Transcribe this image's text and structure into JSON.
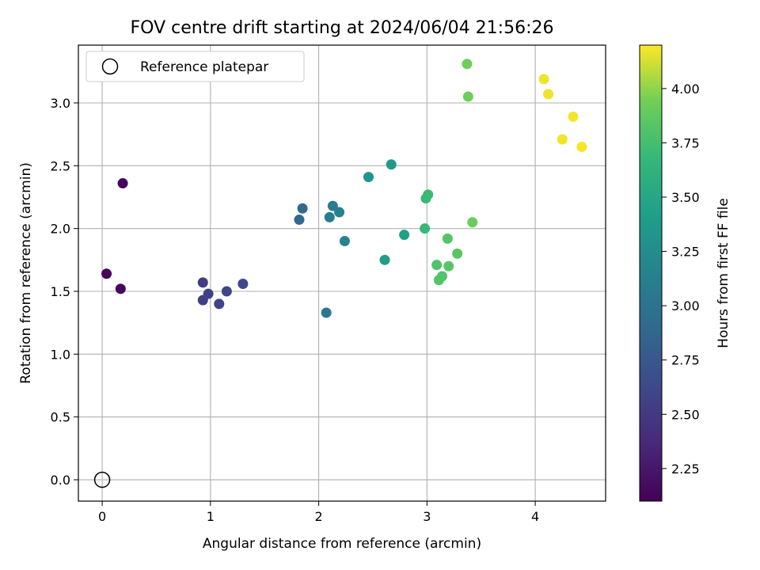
{
  "chart_data": {
    "type": "scatter",
    "title": "FOV centre drift starting at 2024/06/04 21:56:26",
    "xlabel": "Angular distance from reference (arcmin)",
    "ylabel": "Rotation from reference (arcmin)",
    "xlim": [
      -0.22,
      4.65
    ],
    "ylim": [
      -0.17,
      3.46
    ],
    "xticks": [
      0,
      1,
      2,
      3,
      4
    ],
    "yticks": [
      0.0,
      0.5,
      1.0,
      1.5,
      2.0,
      2.5,
      3.0
    ],
    "grid": true,
    "legend": {
      "placement": "top-left",
      "entries": [
        "Reference platepar"
      ]
    },
    "reference_point": {
      "x": 0,
      "y": 0,
      "label": "Reference platepar"
    },
    "colorbar": {
      "label": "Hours from first FF file",
      "range": [
        2.1,
        4.2
      ],
      "ticks": [
        2.25,
        2.5,
        2.75,
        3.0,
        3.25,
        3.5,
        3.75,
        4.0
      ],
      "tick_labels": [
        "2.25",
        "2.50",
        "2.75",
        "3.00",
        "3.25",
        "3.50",
        "3.75",
        "4.00"
      ],
      "colormap": "viridis"
    },
    "points": [
      {
        "x": 0.04,
        "y": 1.64,
        "c": 2.13
      },
      {
        "x": 0.17,
        "y": 1.52,
        "c": 2.14
      },
      {
        "x": 0.19,
        "y": 2.36,
        "c": 2.15
      },
      {
        "x": 0.93,
        "y": 1.57,
        "c": 2.52
      },
      {
        "x": 0.93,
        "y": 1.43,
        "c": 2.54
      },
      {
        "x": 0.98,
        "y": 1.48,
        "c": 2.56
      },
      {
        "x": 1.08,
        "y": 1.4,
        "c": 2.58
      },
      {
        "x": 1.15,
        "y": 1.5,
        "c": 2.6
      },
      {
        "x": 1.3,
        "y": 1.56,
        "c": 2.62
      },
      {
        "x": 1.82,
        "y": 2.07,
        "c": 2.9
      },
      {
        "x": 1.85,
        "y": 2.16,
        "c": 2.91
      },
      {
        "x": 2.07,
        "y": 1.33,
        "c": 3.05
      },
      {
        "x": 2.1,
        "y": 2.09,
        "c": 3.08
      },
      {
        "x": 2.13,
        "y": 2.18,
        "c": 3.1
      },
      {
        "x": 2.19,
        "y": 2.13,
        "c": 3.14
      },
      {
        "x": 2.24,
        "y": 1.9,
        "c": 3.15
      },
      {
        "x": 2.46,
        "y": 2.41,
        "c": 3.32
      },
      {
        "x": 2.61,
        "y": 1.75,
        "c": 3.4
      },
      {
        "x": 2.67,
        "y": 2.51,
        "c": 3.37
      },
      {
        "x": 2.79,
        "y": 1.95,
        "c": 3.42
      },
      {
        "x": 2.98,
        "y": 2.0,
        "c": 3.68
      },
      {
        "x": 2.99,
        "y": 2.24,
        "c": 3.7
      },
      {
        "x": 3.01,
        "y": 2.27,
        "c": 3.7
      },
      {
        "x": 3.09,
        "y": 1.71,
        "c": 3.8
      },
      {
        "x": 3.11,
        "y": 1.59,
        "c": 3.82
      },
      {
        "x": 3.14,
        "y": 1.62,
        "c": 3.81
      },
      {
        "x": 3.19,
        "y": 1.92,
        "c": 3.82
      },
      {
        "x": 3.2,
        "y": 1.7,
        "c": 3.83
      },
      {
        "x": 3.28,
        "y": 1.8,
        "c": 3.84
      },
      {
        "x": 3.37,
        "y": 3.31,
        "c": 3.94
      },
      {
        "x": 3.38,
        "y": 3.05,
        "c": 3.94
      },
      {
        "x": 3.42,
        "y": 2.05,
        "c": 3.92
      },
      {
        "x": 4.08,
        "y": 3.19,
        "c": 4.17
      },
      {
        "x": 4.12,
        "y": 3.07,
        "c": 4.17
      },
      {
        "x": 4.25,
        "y": 2.71,
        "c": 4.18
      },
      {
        "x": 4.35,
        "y": 2.89,
        "c": 4.18
      },
      {
        "x": 4.43,
        "y": 2.65,
        "c": 4.19
      }
    ]
  }
}
